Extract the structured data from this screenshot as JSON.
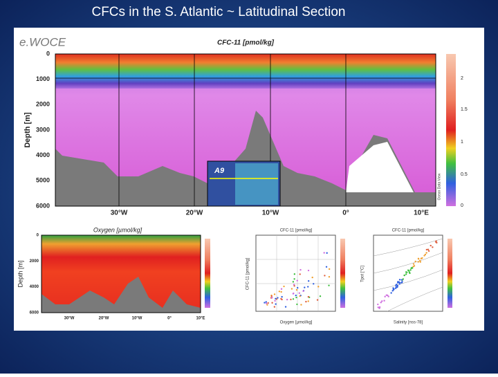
{
  "slide": {
    "title": "CFCs in the S. Atlantic ~ Latitudinal Section"
  },
  "main": {
    "brand": "e.WOCE",
    "title": "CFC-11 [pmol/kg]",
    "y_label": "Depth [m]",
    "y_ticks": [
      "0",
      "1000",
      "2000",
      "3000",
      "4000",
      "5000",
      "6000"
    ],
    "x_ticks": [
      "30°W",
      "20°W",
      "10°W",
      "0°",
      "10°E"
    ],
    "colorbar_ticks": [
      "2",
      "1.5",
      "1",
      "0.5",
      "0"
    ],
    "colorbar_note": "Ocean Data View",
    "inset": "A9"
  },
  "oxygen": {
    "title": "Oxygen [µmol/kg]",
    "y_label": "Depth [m]",
    "y_ticks": [
      "0",
      "2000",
      "4000",
      "6000"
    ],
    "x_ticks": [
      "30°W",
      "20°W",
      "10°W",
      "0°",
      "10°E"
    ]
  },
  "scatter1": {
    "title": "CFC-11 [pmol/kg]",
    "x_label": "Oxygen [µmol/kg]",
    "y_label": "CFC-11 [pmol/kg]"
  },
  "scatter2": {
    "title": "CFC-11 [pmol/kg]",
    "x_label": "Salinity [nss-78]",
    "y_label": "Tpot [°C]"
  }
}
